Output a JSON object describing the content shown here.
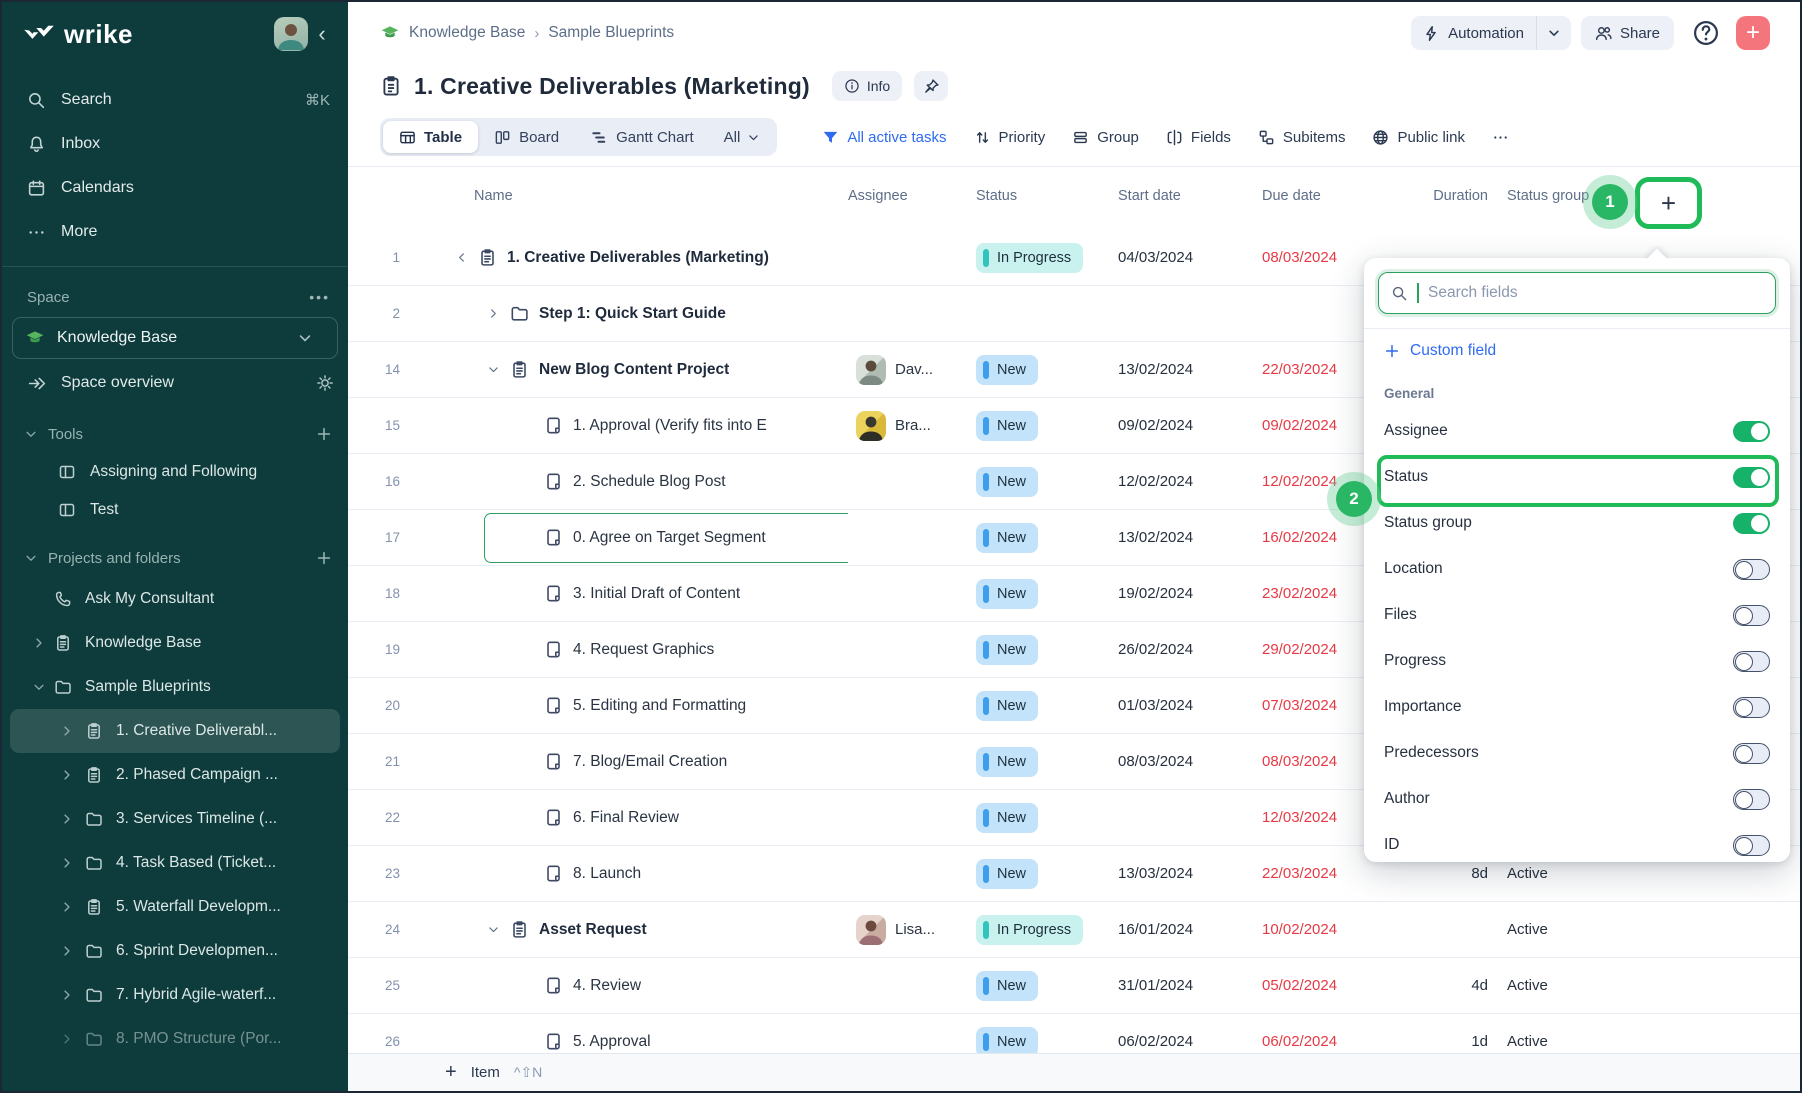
{
  "sidebar": {
    "logo_text": "wrike",
    "collapse_icon": "‹",
    "nav_items": [
      {
        "icon": "search",
        "label": "Search",
        "shortcut": "⌘K"
      },
      {
        "icon": "bell",
        "label": "Inbox",
        "shortcut": ""
      },
      {
        "icon": "calendar",
        "label": "Calendars",
        "shortcut": ""
      },
      {
        "icon": "dots",
        "label": "More",
        "shortcut": ""
      }
    ],
    "space_section_label": "Space",
    "space_menu_icon": "•••",
    "space_name": "Knowledge Base",
    "space_overview_label": "Space overview",
    "tools": {
      "label": "Tools",
      "items": [
        {
          "icon": "board",
          "label": "Assigning and Following"
        },
        {
          "icon": "board",
          "label": "Test"
        }
      ]
    },
    "projects": {
      "label": "Projects and folders",
      "items": [
        {
          "icon": "phone",
          "label": "Ask My Consultant",
          "chevron": "",
          "nested": false,
          "selected": false,
          "faded": false
        },
        {
          "icon": "doc",
          "label": "Knowledge Base",
          "chevron": ">",
          "nested": false,
          "selected": false,
          "faded": false
        },
        {
          "icon": "folder",
          "label": "Sample Blueprints",
          "chevron": "v",
          "nested": false,
          "selected": false,
          "faded": false
        },
        {
          "icon": "doc",
          "label": "1. Creative Deliverabl...",
          "chevron": ">",
          "nested": true,
          "selected": true,
          "faded": false
        },
        {
          "icon": "doc",
          "label": "2. Phased Campaign ...",
          "chevron": ">",
          "nested": true,
          "selected": false,
          "faded": false
        },
        {
          "icon": "folder",
          "label": "3. Services Timeline (...",
          "chevron": ">",
          "nested": true,
          "selected": false,
          "faded": false
        },
        {
          "icon": "folder",
          "label": "4. Task Based (Ticket...",
          "chevron": ">",
          "nested": true,
          "selected": false,
          "faded": false
        },
        {
          "icon": "doc",
          "label": "5. Waterfall Developm...",
          "chevron": ">",
          "nested": true,
          "selected": false,
          "faded": false
        },
        {
          "icon": "folder",
          "label": "6. Sprint Developmen...",
          "chevron": ">",
          "nested": true,
          "selected": false,
          "faded": false
        },
        {
          "icon": "folder",
          "label": "7. Hybrid Agile-waterf...",
          "chevron": ">",
          "nested": true,
          "selected": false,
          "faded": false
        },
        {
          "icon": "folder",
          "label": "8. PMO Structure (Por...",
          "chevron": ">",
          "nested": true,
          "selected": false,
          "faded": true
        }
      ]
    }
  },
  "topbar": {
    "breadcrumb": [
      "Knowledge Base",
      "Sample Blueprints"
    ],
    "breadcrumb_separator": "›",
    "automation_label": "Automation",
    "share_label": "Share",
    "help_label": "?",
    "add_label": "+"
  },
  "header": {
    "title": "1. Creative Deliverables (Marketing)",
    "info_label": "Info"
  },
  "viewbar": {
    "tabs": [
      {
        "icon": "table",
        "label": "Table",
        "selected": true
      },
      {
        "icon": "kanban",
        "label": "Board",
        "selected": false
      },
      {
        "icon": "gantt",
        "label": "Gantt Chart",
        "selected": false
      }
    ],
    "all_label": "All",
    "tools": [
      {
        "icon": "funnel",
        "label": "All active tasks",
        "blue": true
      },
      {
        "icon": "sort",
        "label": "Priority",
        "blue": false
      },
      {
        "icon": "group",
        "label": "Group",
        "blue": false
      },
      {
        "icon": "fields",
        "label": "Fields",
        "blue": false
      },
      {
        "icon": "subitems",
        "label": "Subitems",
        "blue": false
      },
      {
        "icon": "globe",
        "label": "Public link",
        "blue": false
      },
      {
        "icon": "dots",
        "label": "",
        "blue": false
      }
    ]
  },
  "table": {
    "columns": [
      "Name",
      "Assignee",
      "Status",
      "Start date",
      "Due date",
      "Duration",
      "Status group"
    ],
    "add_column_label": "+",
    "rows": [
      {
        "num": "1",
        "level": 0,
        "chev": "<",
        "icon": "doc",
        "bold": true,
        "name": "1. Creative Deliverables (Marketing)",
        "avatar": "",
        "assignee": "",
        "status": "In Progress",
        "status_type": "in_progress",
        "start": "04/03/2024",
        "due": "08/03/2024",
        "duration": "",
        "group": "",
        "highlight": false
      },
      {
        "num": "2",
        "level": 1,
        "chev": ">",
        "icon": "folder",
        "bold": true,
        "name": "Step 1: Quick Start Guide",
        "avatar": "",
        "assignee": "",
        "status": "",
        "status_type": "",
        "start": "",
        "due": "",
        "duration": "",
        "group": "",
        "highlight": false
      },
      {
        "num": "14",
        "level": 1,
        "chev": "v",
        "icon": "doc",
        "bold": true,
        "name": "New Blog Content Project",
        "avatar": "m1",
        "assignee": "Dav...",
        "status": "New",
        "status_type": "new",
        "start": "13/02/2024",
        "due": "22/03/2024",
        "duration": "",
        "group": "",
        "highlight": false
      },
      {
        "num": "15",
        "level": 2,
        "chev": "",
        "icon": "page",
        "bold": false,
        "name": "1. Approval (Verify fits into E",
        "avatar": "m2",
        "assignee": "Bra...",
        "status": "New",
        "status_type": "new",
        "start": "09/02/2024",
        "due": "09/02/2024",
        "duration": "",
        "group": "",
        "highlight": false
      },
      {
        "num": "16",
        "level": 2,
        "chev": "",
        "icon": "page",
        "bold": false,
        "name": "2. Schedule Blog Post",
        "avatar": "",
        "assignee": "",
        "status": "New",
        "status_type": "new",
        "start": "12/02/2024",
        "due": "12/02/2024",
        "duration": "",
        "group": "",
        "highlight": false
      },
      {
        "num": "17",
        "level": 2,
        "chev": "",
        "icon": "page",
        "bold": false,
        "name": "0. Agree on Target Segment",
        "avatar": "",
        "assignee": "",
        "status": "New",
        "status_type": "new",
        "start": "13/02/2024",
        "due": "16/02/2024",
        "duration": "",
        "group": "",
        "highlight": true
      },
      {
        "num": "18",
        "level": 2,
        "chev": "",
        "icon": "page",
        "bold": false,
        "name": "3. Initial Draft of Content",
        "avatar": "",
        "assignee": "",
        "status": "New",
        "status_type": "new",
        "start": "19/02/2024",
        "due": "23/02/2024",
        "duration": "",
        "group": "",
        "highlight": false
      },
      {
        "num": "19",
        "level": 2,
        "chev": "",
        "icon": "page",
        "bold": false,
        "name": "4. Request Graphics",
        "avatar": "",
        "assignee": "",
        "status": "New",
        "status_type": "new",
        "start": "26/02/2024",
        "due": "29/02/2024",
        "duration": "",
        "group": "",
        "highlight": false
      },
      {
        "num": "20",
        "level": 2,
        "chev": "",
        "icon": "page",
        "bold": false,
        "name": "5. Editing and Formatting",
        "avatar": "",
        "assignee": "",
        "status": "New",
        "status_type": "new",
        "start": "01/03/2024",
        "due": "07/03/2024",
        "duration": "",
        "group": "",
        "highlight": false
      },
      {
        "num": "21",
        "level": 2,
        "chev": "",
        "icon": "page",
        "bold": false,
        "name": "7. Blog/Email Creation",
        "avatar": "",
        "assignee": "",
        "status": "New",
        "status_type": "new",
        "start": "08/03/2024",
        "due": "08/03/2024",
        "duration": "",
        "group": "",
        "highlight": false
      },
      {
        "num": "22",
        "level": 2,
        "chev": "",
        "icon": "page",
        "bold": false,
        "name": "6. Final Review",
        "avatar": "",
        "assignee": "",
        "status": "New",
        "status_type": "new",
        "start": "",
        "due": "12/03/2024",
        "duration": "",
        "group": "",
        "highlight": false
      },
      {
        "num": "23",
        "level": 2,
        "chev": "",
        "icon": "page",
        "bold": false,
        "name": "8. Launch",
        "avatar": "",
        "assignee": "",
        "status": "New",
        "status_type": "new",
        "start": "13/03/2024",
        "due": "22/03/2024",
        "duration": "8d",
        "group": "Active",
        "highlight": false
      },
      {
        "num": "24",
        "level": 1,
        "chev": "v",
        "icon": "doc",
        "bold": true,
        "name": "Asset Request",
        "avatar": "f1",
        "assignee": "Lisa...",
        "status": "In Progress",
        "status_type": "in_progress",
        "start": "16/01/2024",
        "due": "10/02/2024",
        "duration": "",
        "group": "Active",
        "highlight": false
      },
      {
        "num": "25",
        "level": 2,
        "chev": "",
        "icon": "page",
        "bold": false,
        "name": "4. Review",
        "avatar": "",
        "assignee": "",
        "status": "New",
        "status_type": "new",
        "start": "31/01/2024",
        "due": "05/02/2024",
        "duration": "4d",
        "group": "Active",
        "highlight": false
      },
      {
        "num": "26",
        "level": 2,
        "chev": "",
        "icon": "page",
        "bold": false,
        "name": "5. Approval",
        "avatar": "",
        "assignee": "",
        "status": "New",
        "status_type": "new",
        "start": "06/02/2024",
        "due": "06/02/2024",
        "duration": "1d",
        "group": "Active",
        "highlight": false
      }
    ],
    "footer": {
      "plus": "+",
      "item_label": "Item",
      "shortcut": "^⇧N"
    }
  },
  "fields_panel": {
    "search_placeholder": "Search fields",
    "custom_field_label": "Custom field",
    "section_label": "General",
    "fields": [
      {
        "label": "Assignee",
        "on": true,
        "highlighted": false
      },
      {
        "label": "Status",
        "on": true,
        "highlighted": true
      },
      {
        "label": "Status group",
        "on": true,
        "highlighted": false
      },
      {
        "label": "Location",
        "on": false,
        "highlighted": false
      },
      {
        "label": "Files",
        "on": false,
        "highlighted": false
      },
      {
        "label": "Progress",
        "on": false,
        "highlighted": false
      },
      {
        "label": "Importance",
        "on": false,
        "highlighted": false
      },
      {
        "label": "Predecessors",
        "on": false,
        "highlighted": false
      },
      {
        "label": "Author",
        "on": false,
        "highlighted": false
      },
      {
        "label": "ID",
        "on": false,
        "highlighted": false
      }
    ]
  },
  "annotations": {
    "badge1": "1",
    "badge2": "2",
    "highlight_color": "#1fbb59"
  },
  "colors": {
    "sidebar_bg": "#0e3b3c",
    "accent_green": "#1fbb59",
    "link_blue": "#2e6bf0",
    "danger_red": "#e63946",
    "chip_progress": "#c9f2ef",
    "chip_new": "#c3e3fb",
    "add_coral": "#f4757c"
  }
}
